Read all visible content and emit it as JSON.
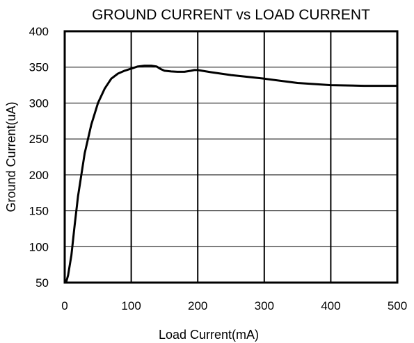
{
  "chart_data": {
    "type": "line",
    "title": "GROUND CURRENT vs LOAD CURRENT",
    "xlabel": "Load Current(mA)",
    "ylabel": "Ground Current(uA)",
    "xlim": [
      0,
      500
    ],
    "ylim": [
      50,
      400
    ],
    "x_ticks": [
      0,
      100,
      200,
      300,
      400,
      500
    ],
    "y_ticks": [
      50,
      100,
      150,
      200,
      250,
      300,
      350,
      400
    ],
    "grid": {
      "vertical": true,
      "horizontal": true
    },
    "legend": "none",
    "line_color": "#000000",
    "series": [
      {
        "x": [
          2,
          5,
          10,
          15,
          20,
          30,
          40,
          50,
          60,
          70,
          80,
          90,
          100,
          110,
          120,
          130,
          138,
          145,
          150,
          160,
          170,
          180,
          190,
          195,
          200,
          220,
          250,
          300,
          350,
          400,
          450,
          500
        ],
        "y": [
          50,
          60,
          88,
          130,
          170,
          230,
          270,
          300,
          320,
          334,
          341,
          345,
          348,
          351,
          352,
          352,
          351,
          347,
          345,
          344,
          343.5,
          343.5,
          345,
          346,
          346,
          343,
          339,
          334,
          328,
          325,
          324,
          324
        ]
      }
    ]
  }
}
